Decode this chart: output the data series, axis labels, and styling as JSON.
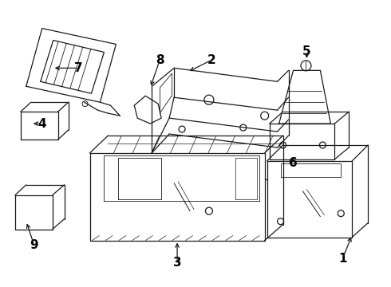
{
  "background_color": "#ffffff",
  "line_color": "#1a1a1a",
  "label_color": "#000000",
  "label_fontsize": 11,
  "label_fontweight": "bold",
  "figsize": [
    4.9,
    3.6
  ],
  "dpi": 100
}
